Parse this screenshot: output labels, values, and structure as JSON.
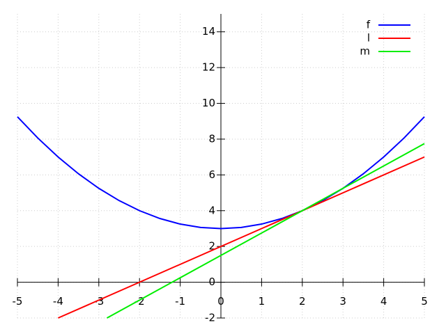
{
  "chart_data": {
    "type": "line",
    "xlim": [
      -5,
      5
    ],
    "ylim": [
      -2,
      15
    ],
    "xticks": [
      -5,
      -4,
      -3,
      -2,
      -1,
      0,
      1,
      2,
      3,
      4,
      5
    ],
    "yticks": [
      -2,
      0,
      2,
      4,
      6,
      8,
      10,
      12,
      14
    ],
    "grid": true,
    "legend": "top-right",
    "series": [
      {
        "name": "f",
        "color": "#0000ff",
        "x": [
          -5,
          -4.5,
          -4,
          -3.5,
          -3,
          -2.5,
          -2,
          -1.5,
          -1,
          -0.5,
          0,
          0.5,
          1,
          1.5,
          2,
          2.5,
          3,
          3.5,
          4,
          4.5,
          5
        ],
        "values": [
          9.25,
          8.0625,
          7,
          6.0625,
          5.25,
          4.5625,
          4,
          3.5625,
          3.25,
          3.0625,
          3,
          3.0625,
          3.25,
          3.5625,
          4,
          4.5625,
          5.25,
          6.0625,
          7,
          8.0625,
          9.25
        ]
      },
      {
        "name": "l",
        "color": "#ff0000",
        "x": [
          -4,
          5
        ],
        "values": [
          -2,
          7
        ]
      },
      {
        "name": "m",
        "color": "#00ee00",
        "x": [
          -2.8,
          5
        ],
        "values": [
          -2,
          7.75
        ]
      }
    ]
  }
}
